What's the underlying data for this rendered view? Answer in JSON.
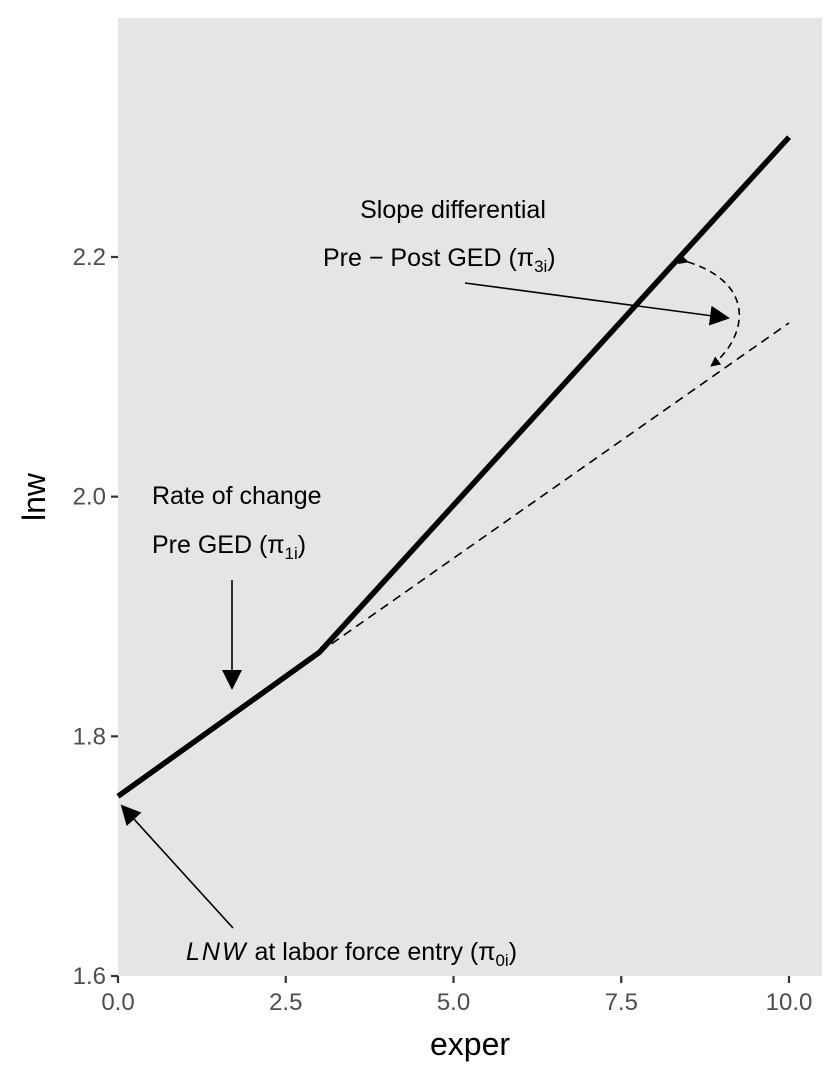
{
  "chart_data": {
    "type": "line",
    "xlabel": "exper",
    "ylabel": "lnw",
    "xlim": [
      0,
      10.5
    ],
    "ylim": [
      1.6,
      2.4
    ],
    "xticks": [
      "0.0",
      "2.5",
      "5.0",
      "7.5",
      "10.0"
    ],
    "yticks": [
      "1.6",
      "1.8",
      "2.0",
      "2.2"
    ],
    "grid": false,
    "legend": "none",
    "series": [
      {
        "x": [
          0,
          3,
          10
        ],
        "y": [
          1.75,
          1.87,
          2.3
        ],
        "style": "solid"
      },
      {
        "x": [
          3,
          10
        ],
        "y": [
          1.87,
          2.145
        ],
        "style": "dashed"
      }
    ],
    "annotations": {
      "slope_diff_line1": "Slope differential",
      "slope_diff_line2": "Pre − Post GED (π",
      "slope_diff_sub": "3i",
      "rate_line1": "Rate of change",
      "rate_line2": "Pre GED (π",
      "rate_sub": "1i",
      "entry_italic": "LNW",
      "entry_text": " at labor force entry (π",
      "entry_sub": "0i",
      "close_paren": ")"
    }
  }
}
